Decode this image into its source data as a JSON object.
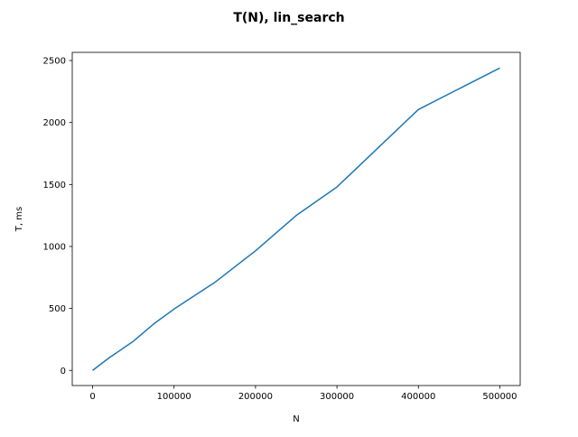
{
  "chart_data": {
    "type": "line",
    "title": "T(N), lin_search",
    "xlabel": "N",
    "ylabel": "T, ms",
    "xlim": [
      -25000,
      525000
    ],
    "ylim": [
      -122,
      2566
    ],
    "x_ticks": [
      0,
      100000,
      200000,
      300000,
      400000,
      500000
    ],
    "x_tick_labels": [
      "0",
      "100000",
      "200000",
      "300000",
      "400000",
      "500000"
    ],
    "y_ticks": [
      0,
      500,
      1000,
      1500,
      2000,
      2500
    ],
    "y_tick_labels": [
      "0",
      "500",
      "1000",
      "1500",
      "2000",
      "2500"
    ],
    "grid": false,
    "series": [
      {
        "color": "#1f77b4",
        "x": [
          0,
          20000,
          50000,
          75000,
          100000,
          150000,
          200000,
          250000,
          300000,
          400000,
          500000
        ],
        "y": [
          0,
          100,
          235,
          375,
          495,
          710,
          965,
          1250,
          1480,
          2105,
          2440
        ]
      }
    ]
  }
}
